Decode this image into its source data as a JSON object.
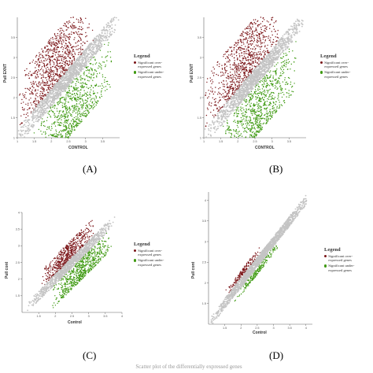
{
  "panel_letters": [
    "(A)",
    "(B)",
    "(C)",
    "(D)"
  ],
  "legend": {
    "title": "Legend",
    "over_label": "Significant over-expressed genes",
    "under_label": "Significant under-expressed genes"
  },
  "colors": {
    "over": "#7b1518",
    "under": "#3f9a12",
    "neutral": "#c4c4c4",
    "axis": "#666666"
  },
  "caption": "Scatter plot of the differentially expressed genes",
  "chart_data": [
    {
      "type": "scatter",
      "id": "A",
      "xlabel": "CONTROL",
      "ylabel": "Pull EXNT",
      "xlim": [
        1,
        4
      ],
      "ylim": [
        1,
        4
      ],
      "xticks": [
        "1",
        "1.5",
        "2",
        "2.5",
        "3",
        "3.5"
      ],
      "yticks": [
        "1",
        "1.5",
        "2",
        "2.5",
        "3",
        "3.5"
      ],
      "series": [
        {
          "name": "Significant over-expressed genes",
          "distribution": {
            "x_range": [
              1,
              3.3
            ],
            "y_offset_range": [
              0.2,
              1.5
            ],
            "count": 900
          }
        },
        {
          "name": "Significant under-expressed genes",
          "distribution": {
            "x_range": [
              1.4,
              3.8
            ],
            "y_offset_range": [
              -1.5,
              -0.2
            ],
            "count": 900
          }
        },
        {
          "distribution": {
            "x_range": [
              1,
              4
            ],
            "y_offset_range": [
              -0.22,
              0.22
            ],
            "count": 1300
          }
        }
      ]
    },
    {
      "type": "scatter",
      "id": "B",
      "xlabel": "CONTROL",
      "ylabel": "Pull EXNT",
      "xlim": [
        1,
        4
      ],
      "ylim": [
        1,
        4
      ],
      "xticks": [
        "1",
        "1.5",
        "2",
        "2.5",
        "3",
        "3.5"
      ],
      "yticks": [
        "1",
        "1.5",
        "2",
        "2.5",
        "3",
        "3.5"
      ],
      "series": [
        {
          "name": "Significant over-expressed genes",
          "distribution": {
            "x_range": [
              1,
              3.3
            ],
            "y_offset_range": [
              0.2,
              1.5
            ],
            "count": 900
          }
        },
        {
          "name": "Significant under-expressed genes",
          "distribution": {
            "x_range": [
              1.4,
              3.8
            ],
            "y_offset_range": [
              -1.5,
              -0.2
            ],
            "count": 900
          }
        },
        {
          "distribution": {
            "x_range": [
              1,
              4
            ],
            "y_offset_range": [
              -0.22,
              0.22
            ],
            "count": 1300
          }
        }
      ]
    },
    {
      "type": "scatter",
      "id": "C",
      "xlabel": "Control",
      "ylabel": "Pull cont",
      "xlim": [
        1,
        4
      ],
      "ylim": [
        1,
        4
      ],
      "xticks": [
        "1.5",
        "2",
        "2.5",
        "3",
        "3.5",
        "4"
      ],
      "yticks": [
        "1.5",
        "2",
        "2.5",
        "3",
        "3.5",
        "4"
      ],
      "series": [
        {
          "name": "Significant over-expressed genes",
          "distribution": {
            "x_range": [
              1.5,
              3.2
            ],
            "y_offset_range": [
              0.15,
              0.7
            ],
            "count": 550
          }
        },
        {
          "name": "Significant under-expressed genes",
          "distribution": {
            "x_range": [
              1.9,
              3.7
            ],
            "y_offset_range": [
              -0.8,
              -0.15
            ],
            "count": 650
          }
        },
        {
          "distribution": {
            "x_range": [
              1.1,
              3.8
            ],
            "y_offset_range": [
              -0.15,
              0.15
            ],
            "count": 1000
          }
        }
      ]
    },
    {
      "type": "scatter",
      "id": "D",
      "xlabel": "Control",
      "ylabel": "Pull cont",
      "xlim": [
        1,
        4.2
      ],
      "ylim": [
        1,
        4.2
      ],
      "xticks": [
        "1.5",
        "2",
        "2.5",
        "3",
        "3.5",
        "4"
      ],
      "yticks": [
        "1.5",
        "2",
        "2.5",
        "3",
        "3.5",
        "4"
      ],
      "series": [
        {
          "name": "Significant over-expressed genes",
          "distribution": {
            "x_range": [
              1.5,
              2.6
            ],
            "y_offset_range": [
              0.13,
              0.3
            ],
            "count": 160
          }
        },
        {
          "name": "Significant under-expressed genes",
          "distribution": {
            "x_range": [
              1.8,
              3.2
            ],
            "y_offset_range": [
              -0.3,
              -0.13
            ],
            "count": 200
          }
        },
        {
          "distribution": {
            "x_range": [
              1,
              4.1
            ],
            "y_offset_range": [
              -0.12,
              0.12
            ],
            "count": 1600
          }
        }
      ]
    }
  ]
}
